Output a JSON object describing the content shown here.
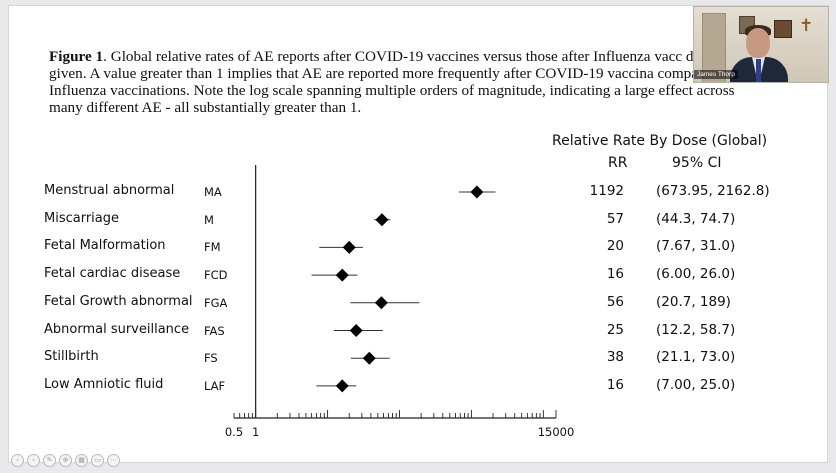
{
  "caption": {
    "figure_label": "Figure 1",
    "text": ".  Global relative rates of AE reports after COVID-19 vaccines versus those after Influenza vacc dose given. A value greater than 1 implies that AE are reported more frequently after COVID-19 vaccina compared to Influenza vaccinations. Note the log scale spanning multiple orders of magnitude, indicating a large effect across many different AE - all substantially greater than 1."
  },
  "table": {
    "title": "Relative Rate By Dose (Global)",
    "rr_header": "RR",
    "ci_header": "95% CI"
  },
  "video": {
    "name": "James Thorp"
  },
  "chart_data": {
    "type": "forest",
    "scale": "log",
    "xlim": [
      0.5,
      15000
    ],
    "xtick_labels": [
      "0.5",
      "1",
      "15000"
    ],
    "reference_line": 1,
    "rows": [
      {
        "label": "Menstrual abnormal",
        "abbr": "MA",
        "rr": 1192,
        "rr_text": "1192",
        "ci_low": 673.95,
        "ci_high": 2162.8,
        "ci_text": "(673.95, 2162.8)"
      },
      {
        "label": "Miscarriage",
        "abbr": "M",
        "rr": 57,
        "rr_text": "57",
        "ci_low": 44.3,
        "ci_high": 74.7,
        "ci_text": "(44.3, 74.7)"
      },
      {
        "label": "Fetal Malformation",
        "abbr": "FM",
        "rr": 20,
        "rr_text": "20",
        "ci_low": 7.67,
        "ci_high": 31.0,
        "ci_text": "(7.67, 31.0)"
      },
      {
        "label": "Fetal cardiac disease",
        "abbr": "FCD",
        "rr": 16,
        "rr_text": "16",
        "ci_low": 6.0,
        "ci_high": 26.0,
        "ci_text": "(6.00, 26.0)"
      },
      {
        "label": "Fetal Growth abnormal",
        "abbr": "FGA",
        "rr": 56,
        "rr_text": "56",
        "ci_low": 20.7,
        "ci_high": 189,
        "ci_text": "(20.7, 189)"
      },
      {
        "label": "Abnormal surveillance",
        "abbr": "FAS",
        "rr": 25,
        "rr_text": "25",
        "ci_low": 12.2,
        "ci_high": 58.7,
        "ci_text": "(12.2, 58.7)"
      },
      {
        "label": "Stillbirth",
        "abbr": "FS",
        "rr": 38,
        "rr_text": "38",
        "ci_low": 21.1,
        "ci_high": 73.0,
        "ci_text": "(21.1, 73.0)"
      },
      {
        "label": "Low Amniotic fluid",
        "abbr": "LAF",
        "rr": 16,
        "rr_text": "16",
        "ci_low": 7.0,
        "ci_high": 25.0,
        "ci_text": "(7.00, 25.0)"
      }
    ]
  },
  "colors": {
    "marker": "#000000",
    "axis": "#222222",
    "background": "#ffffff"
  }
}
